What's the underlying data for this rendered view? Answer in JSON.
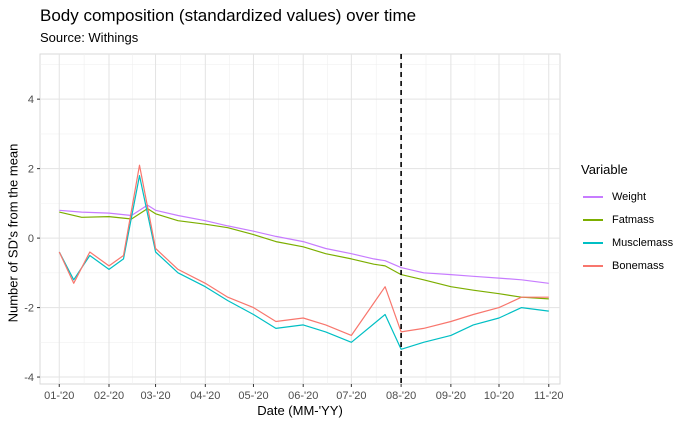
{
  "chart_data": {
    "type": "line",
    "title": "Body composition (standardized values) over time",
    "subtitle": "Source: Withings",
    "xlabel": "Date (MM-'YY)",
    "ylabel": "Number of SD's from the mean",
    "x_range": [
      "2019-12-20",
      "2020-11-08"
    ],
    "ylim": [
      -4.2,
      5.3
    ],
    "y_ticks": [
      -4,
      -2,
      0,
      2,
      4
    ],
    "x_ticks": [
      {
        "date": "2020-01-01",
        "label": "01-'20"
      },
      {
        "date": "2020-02-01",
        "label": "02-'20"
      },
      {
        "date": "2020-03-01",
        "label": "03-'20"
      },
      {
        "date": "2020-04-01",
        "label": "04-'20"
      },
      {
        "date": "2020-05-01",
        "label": "05-'20"
      },
      {
        "date": "2020-06-01",
        "label": "06-'20"
      },
      {
        "date": "2020-07-01",
        "label": "07-'20"
      },
      {
        "date": "2020-08-01",
        "label": "08-'20"
      },
      {
        "date": "2020-09-01",
        "label": "09-'20"
      },
      {
        "date": "2020-10-01",
        "label": "10-'20"
      },
      {
        "date": "2020-11-01",
        "label": "11-'20"
      }
    ],
    "reference_line": {
      "date": "2020-08-01",
      "style": "dashed"
    },
    "grid": true,
    "legend": {
      "title": "Variable",
      "position": "right"
    },
    "series": [
      {
        "name": "Weight",
        "color": "#C77CFF",
        "points": [
          [
            "2020-01-01",
            0.8
          ],
          [
            "2020-01-15",
            0.75
          ],
          [
            "2020-02-01",
            0.72
          ],
          [
            "2020-02-15",
            0.65
          ],
          [
            "2020-02-25",
            0.95
          ],
          [
            "2020-03-01",
            0.8
          ],
          [
            "2020-03-15",
            0.65
          ],
          [
            "2020-04-01",
            0.5
          ],
          [
            "2020-04-15",
            0.35
          ],
          [
            "2020-05-01",
            0.2
          ],
          [
            "2020-05-15",
            0.05
          ],
          [
            "2020-06-01",
            -0.1
          ],
          [
            "2020-06-15",
            -0.3
          ],
          [
            "2020-07-01",
            -0.45
          ],
          [
            "2020-07-15",
            -0.6
          ],
          [
            "2020-07-22",
            -0.65
          ],
          [
            "2020-08-01",
            -0.85
          ],
          [
            "2020-08-15",
            -1.0
          ],
          [
            "2020-09-01",
            -1.05
          ],
          [
            "2020-09-15",
            -1.1
          ],
          [
            "2020-10-01",
            -1.15
          ],
          [
            "2020-10-15",
            -1.2
          ],
          [
            "2020-11-01",
            -1.3
          ]
        ]
      },
      {
        "name": "Fatmass",
        "color": "#7CAE00",
        "points": [
          [
            "2020-01-01",
            0.75
          ],
          [
            "2020-01-15",
            0.6
          ],
          [
            "2020-02-01",
            0.62
          ],
          [
            "2020-02-15",
            0.55
          ],
          [
            "2020-02-25",
            0.85
          ],
          [
            "2020-03-01",
            0.7
          ],
          [
            "2020-03-15",
            0.5
          ],
          [
            "2020-04-01",
            0.4
          ],
          [
            "2020-04-15",
            0.3
          ],
          [
            "2020-05-01",
            0.1
          ],
          [
            "2020-05-15",
            -0.1
          ],
          [
            "2020-06-01",
            -0.25
          ],
          [
            "2020-06-15",
            -0.45
          ],
          [
            "2020-07-01",
            -0.6
          ],
          [
            "2020-07-15",
            -0.75
          ],
          [
            "2020-07-22",
            -0.8
          ],
          [
            "2020-08-01",
            -1.05
          ],
          [
            "2020-08-15",
            -1.2
          ],
          [
            "2020-09-01",
            -1.4
          ],
          [
            "2020-09-15",
            -1.5
          ],
          [
            "2020-10-01",
            -1.6
          ],
          [
            "2020-10-15",
            -1.7
          ],
          [
            "2020-11-01",
            -1.75
          ]
        ]
      },
      {
        "name": "Musclemass",
        "color": "#00BFC4",
        "points": [
          [
            "2020-01-01",
            -0.4
          ],
          [
            "2020-01-10",
            -1.2
          ],
          [
            "2020-01-20",
            -0.5
          ],
          [
            "2020-02-01",
            -0.9
          ],
          [
            "2020-02-10",
            -0.6
          ],
          [
            "2020-02-20",
            1.8
          ],
          [
            "2020-03-01",
            -0.4
          ],
          [
            "2020-03-15",
            -1.0
          ],
          [
            "2020-04-01",
            -1.4
          ],
          [
            "2020-04-15",
            -1.8
          ],
          [
            "2020-05-01",
            -2.2
          ],
          [
            "2020-05-15",
            -2.6
          ],
          [
            "2020-06-01",
            -2.5
          ],
          [
            "2020-06-15",
            -2.7
          ],
          [
            "2020-07-01",
            -3.0
          ],
          [
            "2020-07-22",
            -2.2
          ],
          [
            "2020-08-01",
            -3.2
          ],
          [
            "2020-08-15",
            -3.0
          ],
          [
            "2020-09-01",
            -2.8
          ],
          [
            "2020-09-15",
            -2.5
          ],
          [
            "2020-10-01",
            -2.3
          ],
          [
            "2020-10-15",
            -2.0
          ],
          [
            "2020-11-01",
            -2.1
          ]
        ]
      },
      {
        "name": "Bonemass",
        "color": "#F8766D",
        "points": [
          [
            "2020-01-01",
            -0.4
          ],
          [
            "2020-01-10",
            -1.3
          ],
          [
            "2020-01-20",
            -0.4
          ],
          [
            "2020-02-01",
            -0.8
          ],
          [
            "2020-02-10",
            -0.5
          ],
          [
            "2020-02-20",
            2.1
          ],
          [
            "2020-03-01",
            -0.3
          ],
          [
            "2020-03-15",
            -0.9
          ],
          [
            "2020-04-01",
            -1.3
          ],
          [
            "2020-04-15",
            -1.7
          ],
          [
            "2020-05-01",
            -2.0
          ],
          [
            "2020-05-15",
            -2.4
          ],
          [
            "2020-06-01",
            -2.3
          ],
          [
            "2020-06-15",
            -2.5
          ],
          [
            "2020-07-01",
            -2.8
          ],
          [
            "2020-07-22",
            -1.4
          ],
          [
            "2020-08-01",
            -2.7
          ],
          [
            "2020-08-15",
            -2.6
          ],
          [
            "2020-09-01",
            -2.4
          ],
          [
            "2020-09-15",
            -2.2
          ],
          [
            "2020-10-01",
            -2.0
          ],
          [
            "2020-10-15",
            -1.7
          ],
          [
            "2020-11-01",
            -1.7
          ]
        ]
      }
    ]
  }
}
